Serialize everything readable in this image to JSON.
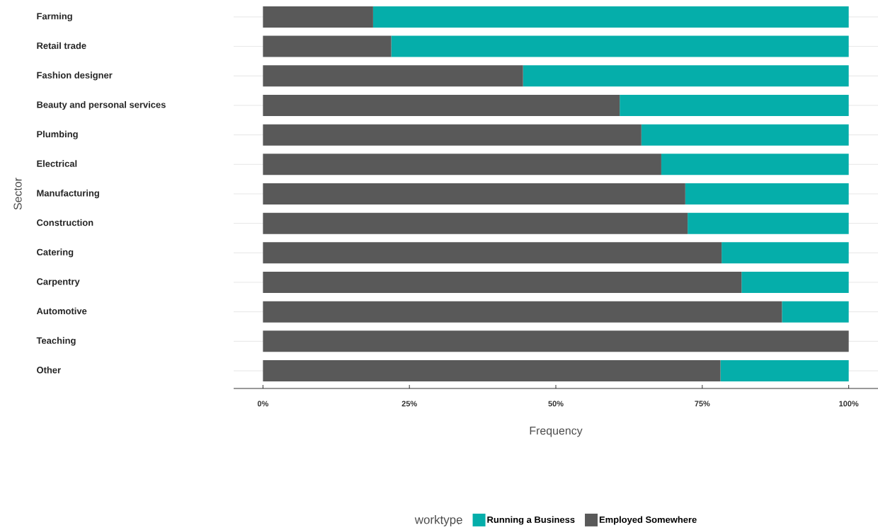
{
  "chart_data": {
    "type": "bar",
    "orientation": "horizontal",
    "stacked": true,
    "xlabel": "Frequency",
    "ylabel": "Sector",
    "legend_title": "worktype",
    "legend": "bottom",
    "grid": "y",
    "categories": [
      "Farming",
      "Retail trade",
      "Fashion designer",
      "Beauty and personal services",
      "Plumbing",
      "Electrical",
      "Manufacturing",
      "Construction",
      "Catering",
      "Carpentry",
      "Automotive",
      "Teaching",
      "Other"
    ],
    "series": [
      {
        "name": "Employed Somewhere",
        "color": "#595959",
        "values": [
          18.8,
          21.9,
          44.4,
          60.9,
          64.6,
          68.0,
          72.1,
          72.5,
          78.3,
          81.7,
          88.6,
          100,
          78.1
        ]
      },
      {
        "name": "Running a Business",
        "color": "#05aeaa",
        "values": [
          81.2,
          78.1,
          55.6,
          39.1,
          35.4,
          32.0,
          27.9,
          27.5,
          21.7,
          18.3,
          11.4,
          0,
          21.9
        ]
      }
    ],
    "xlim": [
      -5,
      105
    ],
    "xticks": [
      {
        "value": 0,
        "label": "0%"
      },
      {
        "value": 25,
        "label": "25%"
      },
      {
        "value": 50,
        "label": "50%"
      },
      {
        "value": 75,
        "label": "75%"
      },
      {
        "value": 100,
        "label": "100%"
      }
    ]
  }
}
